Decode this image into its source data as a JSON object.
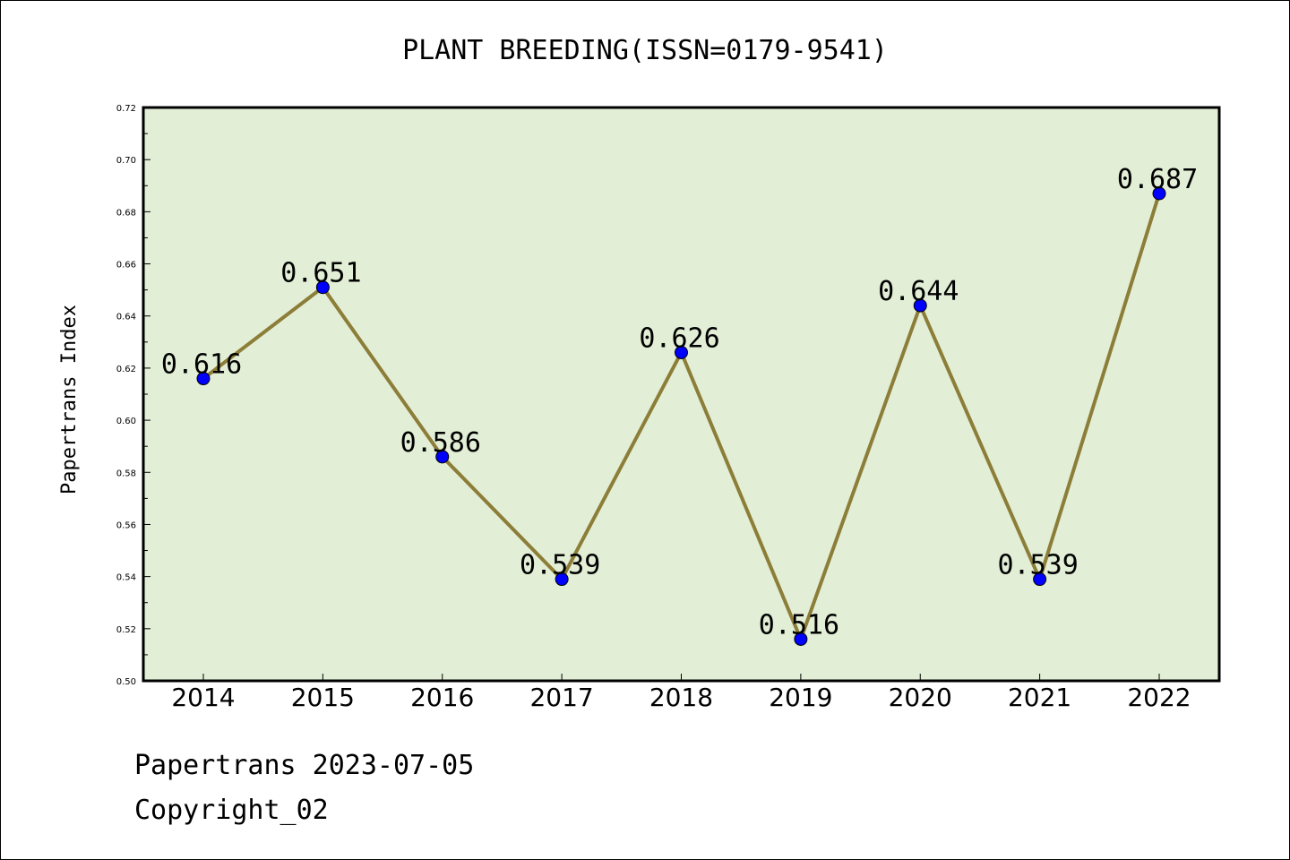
{
  "chart_data": {
    "type": "line",
    "title": "PLANT BREEDING(ISSN=0179-9541)",
    "ylabel": "Papertrans Index",
    "xlabel": "",
    "categories": [
      "2014",
      "2015",
      "2016",
      "2017",
      "2018",
      "2019",
      "2020",
      "2021",
      "2022"
    ],
    "series": [
      {
        "values": [
          0.616,
          0.651,
          0.586,
          0.539,
          0.626,
          0.516,
          0.644,
          0.539,
          0.687
        ]
      }
    ],
    "data_labels": [
      "0.616",
      "0.651",
      "0.586",
      "0.539",
      "0.626",
      "0.516",
      "0.644",
      "0.539",
      "0.687"
    ],
    "ylim": [
      0.5,
      0.72
    ],
    "yticks": [
      "0.50",
      "0.52",
      "0.54",
      "0.56",
      "0.58",
      "0.60",
      "0.62",
      "0.64",
      "0.66",
      "0.68",
      "0.70",
      "0.72"
    ],
    "colors": {
      "plot_background": "#e2efd6",
      "line": "#8c7d38",
      "marker": "#0000ff"
    },
    "grid": false,
    "legend": "none"
  },
  "footer": {
    "line1": "Papertrans 2023-07-05",
    "line2": "Copyright_02"
  }
}
